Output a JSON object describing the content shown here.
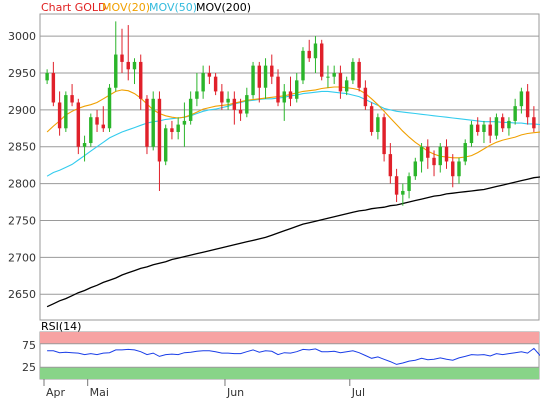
{
  "legend": {
    "chart_label": "Chart GOLD",
    "ma20_label": "MOV(20)",
    "ma50_label": "MOV(50)",
    "ma200_label": "MOV(200)"
  },
  "rsi": {
    "label": "RSI(14)",
    "overbought": 75,
    "oversold": 25,
    "tick_labels": [
      "75",
      "25"
    ]
  },
  "colors": {
    "up": "#2bb52b",
    "down": "#e0202a",
    "ma20": "#f0a000",
    "ma50": "#33ccee",
    "ma200": "#000000",
    "rsi_line": "#1a3ee8",
    "rsi_upper_zone": "#f7a3a3",
    "rsi_lower_zone": "#88d488",
    "chart_label_color": "#e02020"
  },
  "chart_data": {
    "type": "candlestick",
    "ylim": [
      2615,
      3030
    ],
    "y_ticks": [
      3000,
      2950,
      2900,
      2850,
      2800,
      2750,
      2700,
      2650
    ],
    "y_tick_labels": [
      "3000",
      "2950",
      "2900",
      "2850",
      "2800",
      "2750",
      "2700",
      "2650"
    ],
    "x_labels": [
      {
        "label": "Apr",
        "index": 0
      },
      {
        "label": "Mai",
        "index": 7
      },
      {
        "label": "Jun",
        "index": 29
      },
      {
        "label": "Jul",
        "index": 49
      }
    ],
    "candles": [
      [
        2940,
        2955,
        2935,
        2950
      ],
      [
        2950,
        2965,
        2905,
        2910
      ],
      [
        2910,
        2925,
        2865,
        2875
      ],
      [
        2875,
        2925,
        2870,
        2920
      ],
      [
        2920,
        2935,
        2905,
        2910
      ],
      [
        2910,
        2915,
        2840,
        2850
      ],
      [
        2850,
        2865,
        2830,
        2855
      ],
      [
        2855,
        2895,
        2850,
        2890
      ],
      [
        2890,
        2900,
        2870,
        2880
      ],
      [
        2880,
        2905,
        2870,
        2875
      ],
      [
        2875,
        2935,
        2870,
        2930
      ],
      [
        2930,
        3020,
        2925,
        2975
      ],
      [
        2975,
        3010,
        2950,
        2965
      ],
      [
        2965,
        3015,
        2940,
        2955
      ],
      [
        2955,
        2970,
        2935,
        2965
      ],
      [
        2965,
        2975,
        2900,
        2915
      ],
      [
        2915,
        2920,
        2840,
        2850
      ],
      [
        2850,
        2925,
        2845,
        2915
      ],
      [
        2915,
        2925,
        2790,
        2830
      ],
      [
        2830,
        2880,
        2825,
        2875
      ],
      [
        2875,
        2885,
        2860,
        2870
      ],
      [
        2870,
        2890,
        2860,
        2880
      ],
      [
        2880,
        2910,
        2850,
        2885
      ],
      [
        2885,
        2925,
        2880,
        2915
      ],
      [
        2915,
        2950,
        2905,
        2925
      ],
      [
        2925,
        2960,
        2915,
        2950
      ],
      [
        2950,
        2960,
        2935,
        2945
      ],
      [
        2945,
        2950,
        2920,
        2925
      ],
      [
        2925,
        2935,
        2900,
        2910
      ],
      [
        2910,
        2925,
        2900,
        2915
      ],
      [
        2915,
        2925,
        2880,
        2900
      ],
      [
        2900,
        2915,
        2885,
        2895
      ],
      [
        2895,
        2930,
        2890,
        2920
      ],
      [
        2920,
        2965,
        2915,
        2960
      ],
      [
        2960,
        2965,
        2910,
        2930
      ],
      [
        2930,
        2970,
        2915,
        2960
      ],
      [
        2960,
        2975,
        2935,
        2945
      ],
      [
        2945,
        2955,
        2905,
        2910
      ],
      [
        2910,
        2935,
        2885,
        2925
      ],
      [
        2925,
        2945,
        2905,
        2915
      ],
      [
        2915,
        2950,
        2910,
        2940
      ],
      [
        2940,
        2985,
        2935,
        2980
      ],
      [
        2980,
        2995,
        2965,
        2970
      ],
      [
        2970,
        3000,
        2950,
        2990
      ],
      [
        2990,
        2995,
        2940,
        2945
      ],
      [
        2945,
        2960,
        2930,
        2945
      ],
      [
        2945,
        2960,
        2935,
        2950
      ],
      [
        2950,
        2960,
        2915,
        2925
      ],
      [
        2925,
        2945,
        2920,
        2940
      ],
      [
        2940,
        2970,
        2935,
        2965
      ],
      [
        2965,
        2970,
        2925,
        2930
      ],
      [
        2930,
        2940,
        2900,
        2905
      ],
      [
        2905,
        2910,
        2865,
        2870
      ],
      [
        2870,
        2895,
        2860,
        2890
      ],
      [
        2890,
        2895,
        2830,
        2840
      ],
      [
        2840,
        2855,
        2800,
        2810
      ],
      [
        2810,
        2820,
        2775,
        2785
      ],
      [
        2785,
        2800,
        2770,
        2790
      ],
      [
        2790,
        2815,
        2780,
        2810
      ],
      [
        2810,
        2835,
        2805,
        2830
      ],
      [
        2830,
        2855,
        2815,
        2850
      ],
      [
        2850,
        2860,
        2820,
        2835
      ],
      [
        2835,
        2845,
        2810,
        2825
      ],
      [
        2825,
        2855,
        2815,
        2850
      ],
      [
        2850,
        2860,
        2820,
        2830
      ],
      [
        2830,
        2840,
        2795,
        2810
      ],
      [
        2810,
        2835,
        2800,
        2830
      ],
      [
        2830,
        2860,
        2825,
        2855
      ],
      [
        2855,
        2885,
        2850,
        2880
      ],
      [
        2880,
        2890,
        2865,
        2870
      ],
      [
        2870,
        2885,
        2855,
        2880
      ],
      [
        2880,
        2890,
        2855,
        2865
      ],
      [
        2865,
        2895,
        2860,
        2890
      ],
      [
        2890,
        2895,
        2870,
        2875
      ],
      [
        2875,
        2890,
        2865,
        2885
      ],
      [
        2885,
        2915,
        2880,
        2905
      ],
      [
        2905,
        2930,
        2895,
        2925
      ],
      [
        2925,
        2935,
        2880,
        2890
      ],
      [
        2890,
        2905,
        2870,
        2875
      ]
    ],
    "ma20": [
      2870,
      2878,
      2885,
      2893,
      2898,
      2902,
      2905,
      2907,
      2910,
      2915,
      2920,
      2925,
      2927,
      2926,
      2922,
      2916,
      2908,
      2900,
      2895,
      2892,
      2890,
      2889,
      2890,
      2893,
      2897,
      2901,
      2903,
      2905,
      2906,
      2907,
      2909,
      2911,
      2913,
      2914,
      2915,
      2916,
      2917,
      2918,
      2919,
      2921,
      2923,
      2925,
      2926,
      2927,
      2929,
      2930,
      2931,
      2931,
      2930,
      2929,
      2927,
      2922,
      2915,
      2907,
      2898,
      2889,
      2880,
      2871,
      2863,
      2856,
      2850,
      2844,
      2840,
      2837,
      2836,
      2835,
      2835,
      2836,
      2838,
      2842,
      2847,
      2852,
      2856,
      2859,
      2861,
      2863,
      2866,
      2868,
      2869,
      2870
    ],
    "ma50": [
      2810,
      2815,
      2818,
      2822,
      2826,
      2832,
      2838,
      2844,
      2850,
      2856,
      2862,
      2866,
      2870,
      2873,
      2876,
      2879,
      2882,
      2884,
      2885,
      2887,
      2888,
      2889,
      2890,
      2892,
      2895,
      2898,
      2900,
      2901,
      2903,
      2905,
      2908,
      2910,
      2912,
      2913,
      2914,
      2915,
      2915,
      2916,
      2917,
      2919,
      2920,
      2922,
      2923,
      2924,
      2925,
      2925,
      2924,
      2923,
      2922,
      2920,
      2918,
      2914,
      2910,
      2906,
      2902,
      2900,
      2898,
      2897,
      2896,
      2895,
      2894,
      2893,
      2892,
      2891,
      2890,
      2889,
      2888,
      2887,
      2886,
      2885,
      2884,
      2884,
      2884,
      2883,
      2883,
      2882,
      2882,
      2881,
      2881,
      2880
    ],
    "ma200": [
      2633,
      2637,
      2641,
      2644,
      2648,
      2652,
      2655,
      2659,
      2662,
      2666,
      2669,
      2672,
      2676,
      2679,
      2682,
      2685,
      2687,
      2690,
      2692,
      2694,
      2697,
      2699,
      2701,
      2703,
      2705,
      2707,
      2709,
      2711,
      2713,
      2715,
      2717,
      2719,
      2721,
      2723,
      2725,
      2727,
      2730,
      2733,
      2736,
      2739,
      2742,
      2745,
      2747,
      2749,
      2751,
      2753,
      2755,
      2757,
      2759,
      2761,
      2763,
      2764,
      2766,
      2767,
      2768,
      2770,
      2771,
      2773,
      2775,
      2777,
      2779,
      2781,
      2783,
      2784,
      2786,
      2787,
      2788,
      2789,
      2790,
      2791,
      2792,
      2794,
      2796,
      2798,
      2800,
      2802,
      2804,
      2806,
      2808,
      2809
    ],
    "rsi": [
      60,
      60,
      56,
      57,
      56,
      55,
      52,
      54,
      52,
      55,
      56,
      62,
      62,
      63,
      62,
      58,
      52,
      55,
      48,
      52,
      53,
      52,
      56,
      57,
      59,
      60,
      60,
      58,
      55,
      55,
      54,
      54,
      58,
      62,
      57,
      60,
      59,
      52,
      56,
      55,
      58,
      63,
      62,
      64,
      58,
      58,
      59,
      56,
      58,
      60,
      56,
      50,
      44,
      47,
      42,
      37,
      31,
      34,
      38,
      40,
      44,
      41,
      42,
      45,
      42,
      40,
      45,
      48,
      52,
      51,
      52,
      49,
      54,
      52,
      54,
      56,
      58,
      55,
      65,
      50
    ]
  }
}
